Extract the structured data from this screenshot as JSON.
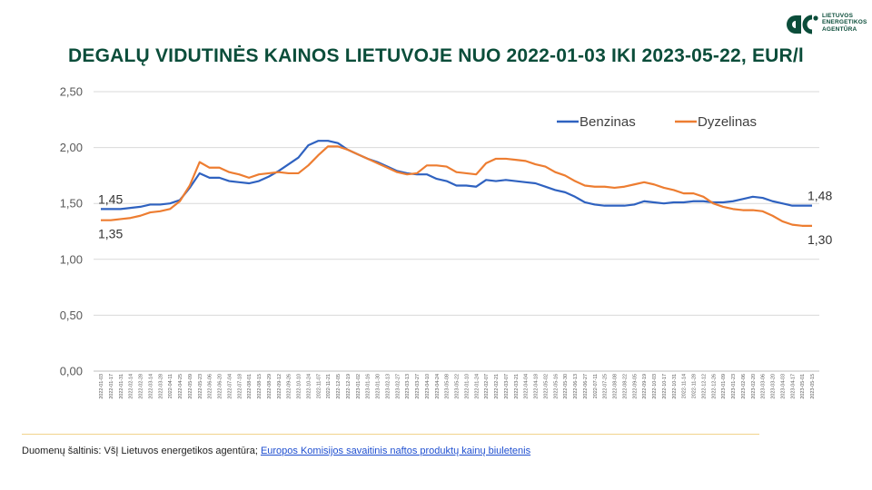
{
  "title": "DEGALŲ VIDUTINĖS KAINOS LIETUVOJE NUO 2022-01-03 IKI 2023-05-22, EUR/l",
  "logo": {
    "lines": [
      "LIETUVOS",
      "ENERGETIKOS",
      "AGENTŪRA"
    ],
    "icon": "lea-logo-icon",
    "color": "#0b4d3a"
  },
  "source": {
    "prefix": "Duomenų šaltinis: VšĮ Lietuvos energetikos agentūra; ",
    "link_text": "Europos Komisijos savaitinis naftos produktų kainų biuletenis"
  },
  "chart_data": {
    "type": "line",
    "title": "DEGALŲ VIDUTINĖS KAINOS LIETUVOJE NUO 2022-01-03 IKI 2023-05-22, EUR/l",
    "ylim": [
      0,
      2.5
    ],
    "yticks": [
      "0,00",
      "0,50",
      "1,00",
      "1,50",
      "2,00",
      "2,50"
    ],
    "grid": true,
    "legend_position": "top-right",
    "x": [
      "2022-01-03",
      "2022-01-10",
      "2022-01-17",
      "2022-01-24",
      "2022-01-31",
      "2022-02-07",
      "2022-02-14",
      "2022-02-21",
      "2022-02-28",
      "2022-03-07",
      "2022-03-14",
      "2022-03-21",
      "2022-03-28",
      "2022-04-04",
      "2022-04-11",
      "2022-04-18",
      "2022-04-25",
      "2022-05-02",
      "2022-05-09",
      "2022-05-16",
      "2022-05-23",
      "2022-05-30",
      "2022-06-06",
      "2022-06-13",
      "2022-06-20",
      "2022-06-27",
      "2022-07-04",
      "2022-07-11",
      "2022-07-18",
      "2022-07-25",
      "2022-08-01",
      "2022-08-08",
      "2022-08-15",
      "2022-08-22",
      "2022-08-29",
      "2022-09-05",
      "2022-09-12",
      "2022-09-19",
      "2022-09-26",
      "2022-10-03",
      "2022-10-10",
      "2022-10-17",
      "2022-10-24",
      "2022-10-31",
      "2022-11-07",
      "2022-11-14",
      "2022-11-21",
      "2022-11-28",
      "2022-12-05",
      "2022-12-12",
      "2022-12-19",
      "2022-12-26",
      "2023-01-02",
      "2023-01-09",
      "2023-01-16",
      "2023-01-23",
      "2023-01-30",
      "2023-02-06",
      "2023-02-13",
      "2023-02-20",
      "2023-02-27",
      "2023-03-06",
      "2023-03-13",
      "2023-03-20",
      "2023-03-27",
      "2023-04-03",
      "2023-04-10",
      "2023-04-17",
      "2023-04-24",
      "2023-05-01",
      "2023-05-08",
      "2023-05-15",
      "2023-05-22"
    ],
    "x_axis_labels": [
      "2022-01-03",
      "2022-01-17",
      "2022-01-31",
      "2022-02-14",
      "2022-02-28",
      "2022-03-14",
      "2022-03-28",
      "2022-04-11",
      "2022-04-25",
      "2022-05-09",
      "2022-05-23",
      "2022-06-06",
      "2022-06-20",
      "2022-07-04",
      "2022-07-18",
      "2022-08-01",
      "2022-08-15",
      "2022-08-29",
      "2022-09-12",
      "2022-09-26",
      "2022-10-10",
      "2022-10-24",
      "2022-11-07",
      "2022-11-21",
      "2022-12-05",
      "2022-12-19",
      "2023-01-02",
      "2023-01-16",
      "2023-01-30",
      "2023-02-13",
      "2023-02-27",
      "2023-03-13",
      "2023-03-27",
      "2023-04-10",
      "2023-04-24",
      "2023-05-08",
      "2023-05-22",
      "2022-01-10",
      "2022-01-24",
      "2022-02-07",
      "2022-02-21",
      "2022-03-07",
      "2022-03-21",
      "2022-04-04",
      "2022-04-18",
      "2022-05-02",
      "2022-05-16",
      "2022-05-30",
      "2022-06-13",
      "2022-06-27",
      "2022-07-11",
      "2022-07-25",
      "2022-08-08",
      "2022-08-22",
      "2022-09-05",
      "2022-09-19",
      "2022-10-03",
      "2022-10-17",
      "2022-10-31",
      "2022-11-14",
      "2022-11-28",
      "2022-12-12",
      "2022-12-26",
      "2023-01-09",
      "2023-01-23",
      "2023-02-06",
      "2023-02-20",
      "2023-03-06",
      "2023-03-20",
      "2023-04-03",
      "2023-04-17",
      "2023-05-01",
      "2023-05-15"
    ],
    "series": [
      {
        "name": "Benzinas",
        "color": "#2f62c0",
        "values": [
          1.45,
          1.45,
          1.45,
          1.46,
          1.47,
          1.49,
          1.49,
          1.5,
          1.53,
          1.64,
          1.77,
          1.73,
          1.73,
          1.7,
          1.69,
          1.68,
          1.7,
          1.74,
          1.79,
          1.85,
          1.91,
          2.02,
          2.06,
          2.06,
          2.04,
          1.98,
          1.94,
          1.9,
          1.87,
          1.83,
          1.79,
          1.77,
          1.76,
          1.76,
          1.72,
          1.7,
          1.66,
          1.66,
          1.65,
          1.71,
          1.7,
          1.71,
          1.7,
          1.69,
          1.68,
          1.65,
          1.62,
          1.6,
          1.56,
          1.51,
          1.49,
          1.48,
          1.48,
          1.48,
          1.49,
          1.52,
          1.51,
          1.5,
          1.51,
          1.51,
          1.52,
          1.52,
          1.51,
          1.51,
          1.52,
          1.54,
          1.56,
          1.55,
          1.52,
          1.5,
          1.48,
          1.48,
          1.48
        ]
      },
      {
        "name": "Dyzelinas",
        "color": "#ed7d31",
        "values": [
          1.35,
          1.35,
          1.36,
          1.37,
          1.39,
          1.42,
          1.43,
          1.45,
          1.52,
          1.66,
          1.87,
          1.82,
          1.82,
          1.78,
          1.76,
          1.73,
          1.76,
          1.77,
          1.78,
          1.77,
          1.77,
          1.84,
          1.93,
          2.01,
          2.01,
          1.98,
          1.94,
          1.9,
          1.86,
          1.82,
          1.78,
          1.76,
          1.77,
          1.84,
          1.84,
          1.83,
          1.78,
          1.77,
          1.76,
          1.86,
          1.9,
          1.9,
          1.89,
          1.88,
          1.85,
          1.83,
          1.78,
          1.75,
          1.7,
          1.66,
          1.65,
          1.65,
          1.64,
          1.65,
          1.67,
          1.69,
          1.67,
          1.64,
          1.62,
          1.59,
          1.59,
          1.56,
          1.5,
          1.47,
          1.45,
          1.44,
          1.44,
          1.43,
          1.39,
          1.34,
          1.31,
          1.3,
          1.3
        ]
      }
    ],
    "annotations": [
      {
        "series": "Benzinas",
        "point": "first",
        "text": "1,45"
      },
      {
        "series": "Dyzelinas",
        "point": "first",
        "text": "1,35"
      },
      {
        "series": "Benzinas",
        "point": "last",
        "text": "1,48"
      },
      {
        "series": "Dyzelinas",
        "point": "last",
        "text": "1,30"
      }
    ]
  }
}
